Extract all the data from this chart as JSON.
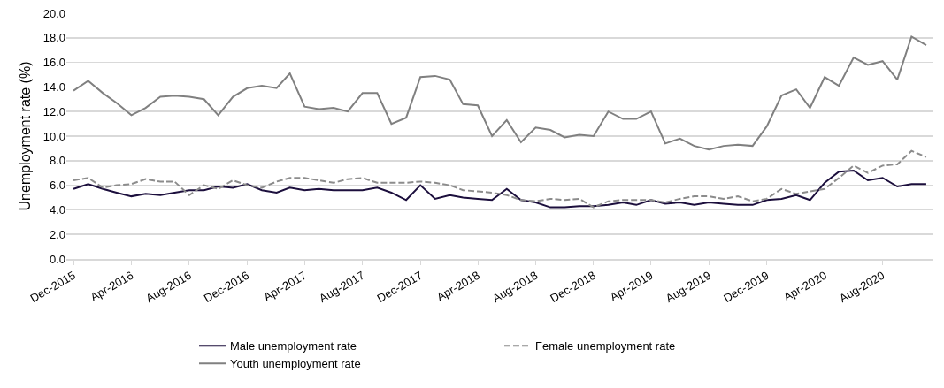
{
  "chart_data": {
    "type": "line",
    "ylabel": "Unemployment rate (%)",
    "x": [
      "2015-12",
      "2016-01",
      "2016-02",
      "2016-03",
      "2016-04",
      "2016-05",
      "2016-06",
      "2016-07",
      "2016-08",
      "2016-09",
      "2016-10",
      "2016-11",
      "2016-12",
      "2017-01",
      "2017-02",
      "2017-03",
      "2017-04",
      "2017-05",
      "2017-06",
      "2017-07",
      "2017-08",
      "2017-09",
      "2017-10",
      "2017-11",
      "2017-12",
      "2018-01",
      "2018-02",
      "2018-03",
      "2018-04",
      "2018-05",
      "2018-06",
      "2018-07",
      "2018-08",
      "2018-09",
      "2018-10",
      "2018-11",
      "2018-12",
      "2019-01",
      "2019-02",
      "2019-03",
      "2019-04",
      "2019-05",
      "2019-06",
      "2019-07",
      "2019-08",
      "2019-09",
      "2019-10",
      "2019-11",
      "2019-12",
      "2020-01",
      "2020-02",
      "2020-03",
      "2020-04",
      "2020-05",
      "2020-06",
      "2020-07",
      "2020-08",
      "2020-09",
      "2020-10",
      "2020-11"
    ],
    "series": [
      {
        "name": "Male unemployment rate",
        "color": "#1c0f3d",
        "line_style": "solid",
        "values": [
          5.7,
          6.1,
          5.7,
          5.4,
          5.1,
          5.3,
          5.2,
          5.4,
          5.6,
          5.6,
          5.9,
          5.8,
          6.1,
          5.6,
          5.4,
          5.8,
          5.6,
          5.7,
          5.6,
          5.6,
          5.6,
          5.8,
          5.4,
          4.8,
          6.0,
          4.9,
          5.2,
          5.0,
          4.9,
          4.8,
          5.7,
          4.8,
          4.6,
          4.2,
          4.2,
          4.3,
          4.3,
          4.4,
          4.6,
          4.4,
          4.8,
          4.5,
          4.6,
          4.4,
          4.6,
          4.5,
          4.4,
          4.4,
          4.8,
          4.9,
          5.2,
          4.8,
          6.2,
          7.1,
          7.2,
          6.4,
          6.6,
          5.9,
          6.1,
          6.1
        ]
      },
      {
        "name": "Female unemployment rate",
        "color": "#8c8c8c",
        "line_style": "dashed",
        "values": [
          6.4,
          6.6,
          5.8,
          6.0,
          6.1,
          6.5,
          6.3,
          6.3,
          5.2,
          6.0,
          5.7,
          6.4,
          6.0,
          5.8,
          6.3,
          6.6,
          6.6,
          6.4,
          6.2,
          6.5,
          6.6,
          6.2,
          6.2,
          6.2,
          6.3,
          6.2,
          6.0,
          5.6,
          5.5,
          5.4,
          5.2,
          4.8,
          4.7,
          4.9,
          4.8,
          4.9,
          4.2,
          4.7,
          4.8,
          4.8,
          4.8,
          4.6,
          4.9,
          5.1,
          5.1,
          4.9,
          5.1,
          4.7,
          4.9,
          5.7,
          5.3,
          5.5,
          5.7,
          6.6,
          7.6,
          7.0,
          7.6,
          7.7,
          8.8,
          8.3
        ]
      },
      {
        "name": "Youth unemployment rate",
        "color": "#808080",
        "line_style": "solid",
        "values": [
          13.7,
          14.5,
          13.5,
          12.7,
          11.7,
          12.3,
          13.2,
          13.3,
          13.2,
          13.0,
          11.7,
          13.2,
          13.9,
          14.1,
          13.9,
          15.1,
          12.4,
          12.2,
          12.3,
          12.0,
          13.5,
          13.5,
          11.0,
          11.5,
          14.8,
          14.9,
          14.6,
          12.6,
          12.5,
          10.0,
          11.3,
          9.5,
          10.7,
          10.5,
          9.9,
          10.1,
          10.0,
          12.0,
          11.4,
          11.4,
          12.0,
          9.4,
          9.8,
          9.2,
          8.9,
          9.2,
          9.3,
          9.2,
          10.8,
          13.3,
          13.8,
          12.3,
          14.8,
          14.1,
          16.4,
          15.8,
          16.1,
          14.6,
          18.1,
          17.4
        ]
      }
    ],
    "xlim": [
      "2015-11-16",
      "2020-11-16"
    ],
    "xticks": [
      {
        "value": "2015-12",
        "label": "Dec-2015"
      },
      {
        "value": "2016-04",
        "label": "Apr-2016"
      },
      {
        "value": "2016-08",
        "label": "Aug-2016"
      },
      {
        "value": "2016-12",
        "label": "Dec-2016"
      },
      {
        "value": "2017-04",
        "label": "Apr-2017"
      },
      {
        "value": "2017-08",
        "label": "Aug-2017"
      },
      {
        "value": "2017-12",
        "label": "Dec-2017"
      },
      {
        "value": "2018-04",
        "label": "Apr-2018"
      },
      {
        "value": "2018-08",
        "label": "Aug-2018"
      },
      {
        "value": "2018-12",
        "label": "Dec-2018"
      },
      {
        "value": "2019-04",
        "label": "Apr-2019"
      },
      {
        "value": "2019-08",
        "label": "Aug-2019"
      },
      {
        "value": "2019-12",
        "label": "Dec-2019"
      },
      {
        "value": "2020-04",
        "label": "Apr-2020"
      },
      {
        "value": "2020-08",
        "label": "Aug-2020"
      }
    ],
    "ylim": [
      0,
      20
    ],
    "yticks": [
      {
        "value": 0,
        "label": "0.0"
      },
      {
        "value": 2,
        "label": "2.0"
      },
      {
        "value": 4,
        "label": "4.0"
      },
      {
        "value": 6,
        "label": "6.0"
      },
      {
        "value": 8,
        "label": "8.0"
      },
      {
        "value": 10,
        "label": "10.0"
      },
      {
        "value": 12,
        "label": "12.0"
      },
      {
        "value": 14,
        "label": "14.0"
      },
      {
        "value": 16,
        "label": "16.0"
      },
      {
        "value": 18,
        "label": "18.0"
      },
      {
        "value": 20,
        "label": "20.0"
      }
    ],
    "grid": "y",
    "legend": "bottom"
  }
}
